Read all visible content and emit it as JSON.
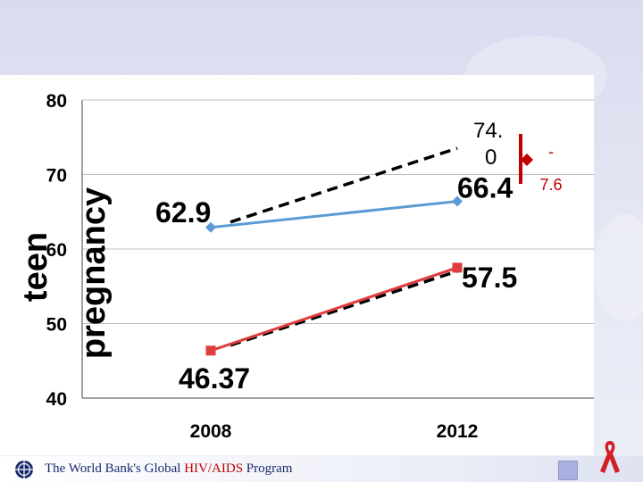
{
  "footer": {
    "prefix": "The World Bank's Global ",
    "highlight": "HIV/AIDS",
    "suffix": " Program"
  },
  "colors": {
    "series_2012_top": "#5b9bd5",
    "series_bottom": "#e03c3c",
    "annotation_bracket": "#c00000"
  },
  "chart_data": {
    "type": "line",
    "categories": [
      "2008",
      "2012"
    ],
    "ylabel": "teen pregnancy",
    "ylim": [
      40,
      80
    ],
    "yticks": [
      40,
      50,
      60,
      70,
      80
    ],
    "grid": true,
    "series": [
      {
        "values": [
          62.9,
          66.4
        ],
        "labels": [
          "62.9",
          "66.4"
        ],
        "color": "#5b9bd5",
        "marker": "diamond"
      },
      {
        "values": [
          46.37,
          57.5
        ],
        "labels": [
          "46.37",
          "57.5"
        ],
        "color": "#e03c3c",
        "marker": "square"
      }
    ],
    "projections": [
      {
        "from_value": 62.9,
        "to_value": 74.0,
        "category_from": "2008",
        "category_to": "2012"
      },
      {
        "from_value": 46.37,
        "to_value": 57.5,
        "category_from": "2008",
        "category_to": "2012"
      }
    ],
    "annotations": {
      "target_line1": "74.",
      "target_line2": "0",
      "gap_sign": "-",
      "gap_value": "7.6"
    }
  }
}
